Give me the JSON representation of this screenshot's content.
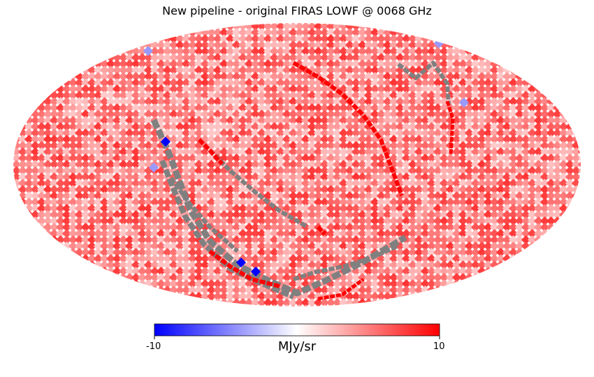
{
  "chart_data": {
    "type": "heatmap",
    "projection": "mollweide",
    "title": "New pipeline - original FIRAS LOWF @ 0068 GHz",
    "colormap": "bwr",
    "masked_color": "#808080",
    "colorbar": {
      "min": -10,
      "max": 10,
      "min_label": "-10",
      "max_label": "10",
      "unit": "MJy/sr",
      "orientation": "horizontal",
      "placement": "bottom"
    },
    "background_level_range": [
      2,
      8
    ],
    "features": [
      {
        "kind": "masked-band",
        "description": "scan stripe"
      },
      {
        "kind": "high-value-stripe",
        "value": 10
      },
      {
        "kind": "low-value-pixels",
        "value": -10
      }
    ]
  }
}
